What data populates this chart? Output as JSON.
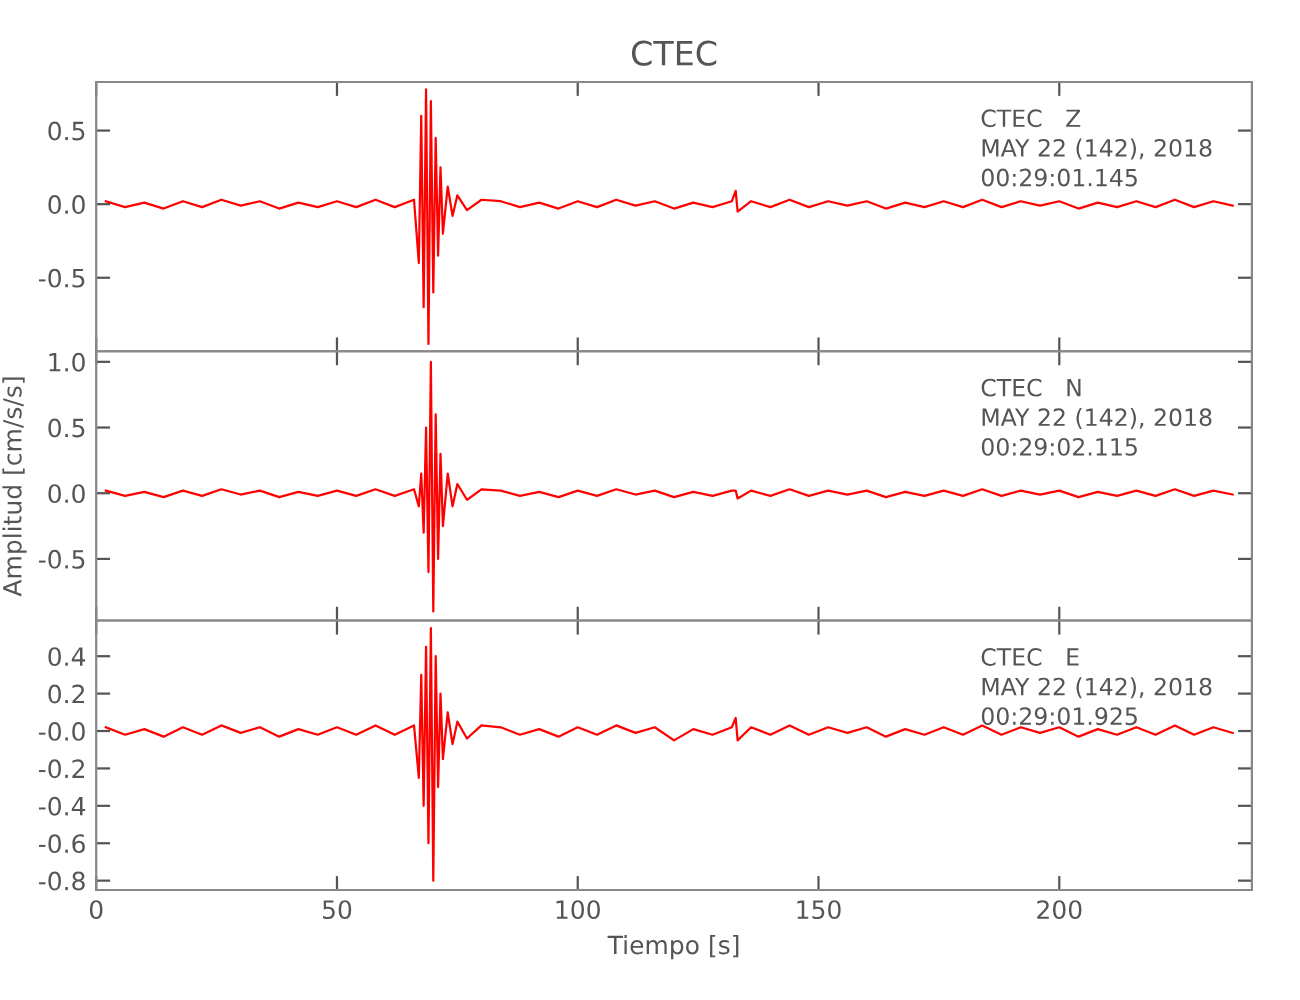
{
  "chart_data": [
    {
      "type": "line",
      "title": "CTEC",
      "xlim": [
        0,
        240
      ],
      "xticks": [
        0,
        50,
        100,
        150,
        200
      ],
      "ylim": [
        -1.0,
        0.83
      ],
      "yticks": [
        {
          "value": 0.5,
          "label": "0.5"
        },
        {
          "value": 0,
          "label": "0.0"
        },
        {
          "value": -0.5,
          "label": "-0.5"
        }
      ],
      "tick_labels": "y",
      "grid": false,
      "annotations": [
        "CTEC   Z",
        "MAY 22 (142), 2018",
        "00:29:01.145"
      ],
      "series": [
        {
          "color": "#ff0000",
          "x": [
            2,
            6,
            10,
            14,
            18,
            22,
            26,
            30,
            34,
            38,
            42,
            46,
            50,
            54,
            58,
            62,
            66,
            67,
            67.5,
            68,
            68.5,
            69,
            69.5,
            70,
            70.5,
            71,
            71.5,
            72,
            73,
            74,
            75,
            77,
            80,
            84,
            88,
            92,
            96,
            100,
            104,
            108,
            112,
            116,
            120,
            124,
            128,
            132,
            132.8,
            133.2,
            136,
            140,
            144,
            148,
            152,
            156,
            160,
            164,
            168,
            172,
            176,
            180,
            184,
            188,
            192,
            196,
            200,
            204,
            208,
            212,
            216,
            220,
            224,
            228,
            232,
            236
          ],
          "values": [
            0.02,
            -0.02,
            0.01,
            -0.03,
            0.02,
            -0.02,
            0.03,
            -0.01,
            0.02,
            -0.03,
            0.01,
            -0.02,
            0.02,
            -0.02,
            0.03,
            -0.02,
            0.03,
            -0.4,
            0.6,
            -0.7,
            0.78,
            -0.95,
            0.7,
            -0.6,
            0.45,
            -0.35,
            0.25,
            -0.2,
            0.12,
            -0.08,
            0.06,
            -0.04,
            0.03,
            0.02,
            -0.02,
            0.01,
            -0.03,
            0.02,
            -0.02,
            0.03,
            -0.01,
            0.02,
            -0.03,
            0.01,
            -0.02,
            0.02,
            0.09,
            -0.05,
            0.02,
            -0.02,
            0.03,
            -0.02,
            0.02,
            -0.01,
            0.02,
            -0.03,
            0.01,
            -0.02,
            0.02,
            -0.02,
            0.03,
            -0.02,
            0.02,
            -0.01,
            0.02,
            -0.03,
            0.01,
            -0.02,
            0.02,
            -0.02,
            0.03,
            -0.02,
            0.02,
            -0.01
          ]
        }
      ]
    },
    {
      "type": "line",
      "ylabel": "Amplitud [cm/s/s]",
      "xlim": [
        0,
        240
      ],
      "xticks": [
        0,
        50,
        100,
        150,
        200
      ],
      "ylim": [
        -0.97,
        1.08
      ],
      "yticks": [
        {
          "value": 1.0,
          "label": "1.0"
        },
        {
          "value": 0.5,
          "label": "0.5"
        },
        {
          "value": 0,
          "label": "0.0"
        },
        {
          "value": -0.5,
          "label": "-0.5"
        }
      ],
      "tick_labels": "y",
      "grid": false,
      "annotations": [
        "CTEC   N",
        "MAY 22 (142), 2018",
        "00:29:02.115"
      ],
      "series": [
        {
          "color": "#ff0000",
          "x": [
            2,
            6,
            10,
            14,
            18,
            22,
            26,
            30,
            34,
            38,
            42,
            46,
            50,
            54,
            58,
            62,
            66,
            67,
            67.5,
            68,
            68.5,
            69,
            69.5,
            70,
            70.5,
            71,
            71.5,
            72,
            73,
            74,
            75,
            77,
            80,
            84,
            88,
            92,
            96,
            100,
            104,
            108,
            112,
            116,
            120,
            124,
            128,
            132,
            132.8,
            133.2,
            136,
            140,
            144,
            148,
            152,
            156,
            160,
            164,
            168,
            172,
            176,
            180,
            184,
            188,
            192,
            196,
            200,
            204,
            208,
            212,
            216,
            220,
            224,
            228,
            232,
            236
          ],
          "values": [
            0.02,
            -0.02,
            0.01,
            -0.03,
            0.02,
            -0.02,
            0.03,
            -0.01,
            0.02,
            -0.03,
            0.01,
            -0.02,
            0.02,
            -0.02,
            0.03,
            -0.02,
            0.03,
            -0.1,
            0.15,
            -0.3,
            0.5,
            -0.6,
            1.0,
            -0.9,
            0.6,
            -0.5,
            0.3,
            -0.25,
            0.15,
            -0.1,
            0.07,
            -0.05,
            0.03,
            0.02,
            -0.02,
            0.01,
            -0.03,
            0.02,
            -0.02,
            0.03,
            -0.01,
            0.02,
            -0.03,
            0.01,
            -0.02,
            0.02,
            0.02,
            -0.04,
            0.02,
            -0.02,
            0.03,
            -0.02,
            0.02,
            -0.01,
            0.02,
            -0.03,
            0.01,
            -0.02,
            0.02,
            -0.02,
            0.03,
            -0.02,
            0.02,
            -0.01,
            0.02,
            -0.03,
            0.01,
            -0.02,
            0.02,
            -0.02,
            0.03,
            -0.02,
            0.02,
            -0.01
          ]
        }
      ]
    },
    {
      "type": "line",
      "xlabel": "Tiempo [s]",
      "xlim": [
        0,
        240
      ],
      "xticks": [
        0,
        50,
        100,
        150,
        200
      ],
      "ylim": [
        -0.85,
        0.59
      ],
      "yticks": [
        {
          "value": 0.4,
          "label": "0.4"
        },
        {
          "value": 0.2,
          "label": "0.2"
        },
        {
          "value": 0,
          "label": "-0.0"
        },
        {
          "value": -0.2,
          "label": "-0.2"
        },
        {
          "value": -0.4,
          "label": "-0.4"
        },
        {
          "value": -0.6,
          "label": "-0.6"
        },
        {
          "value": -0.8,
          "label": "-0.8"
        }
      ],
      "grid": false,
      "annotations": [
        "CTEC   E",
        "MAY 22 (142), 2018",
        "00:29:01.925"
      ],
      "series": [
        {
          "color": "#ff0000",
          "x": [
            2,
            6,
            10,
            14,
            18,
            22,
            26,
            30,
            34,
            38,
            42,
            46,
            50,
            54,
            58,
            62,
            66,
            67,
            67.5,
            68,
            68.5,
            69,
            69.5,
            70,
            70.5,
            71,
            71.5,
            72,
            73,
            74,
            75,
            77,
            80,
            84,
            88,
            92,
            96,
            100,
            104,
            108,
            112,
            116,
            120,
            124,
            128,
            132,
            132.8,
            133.2,
            136,
            140,
            144,
            148,
            152,
            156,
            160,
            164,
            168,
            172,
            176,
            180,
            184,
            188,
            192,
            196,
            200,
            204,
            208,
            212,
            216,
            220,
            224,
            228,
            232,
            236
          ],
          "values": [
            0.02,
            -0.02,
            0.01,
            -0.03,
            0.02,
            -0.02,
            0.03,
            -0.01,
            0.02,
            -0.03,
            0.01,
            -0.02,
            0.02,
            -0.02,
            0.03,
            -0.02,
            0.03,
            -0.25,
            0.3,
            -0.4,
            0.45,
            -0.6,
            0.55,
            -0.8,
            0.4,
            -0.3,
            0.2,
            -0.15,
            0.1,
            -0.07,
            0.05,
            -0.04,
            0.03,
            0.02,
            -0.02,
            0.01,
            -0.03,
            0.02,
            -0.02,
            0.03,
            -0.01,
            0.02,
            -0.05,
            0.01,
            -0.02,
            0.02,
            0.07,
            -0.05,
            0.02,
            -0.02,
            0.03,
            -0.02,
            0.02,
            -0.01,
            0.02,
            -0.03,
            0.01,
            -0.02,
            0.02,
            -0.02,
            0.03,
            -0.02,
            0.02,
            -0.01,
            0.02,
            -0.03,
            0.01,
            -0.02,
            0.02,
            -0.02,
            0.03,
            -0.02,
            0.02,
            -0.01
          ]
        }
      ]
    }
  ]
}
